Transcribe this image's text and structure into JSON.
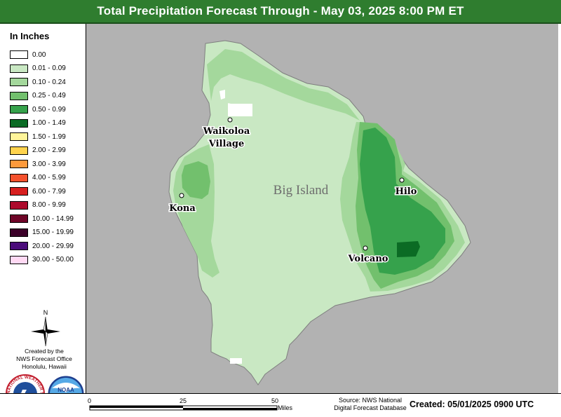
{
  "title": "Total Precipitation Forecast Through - May 03, 2025 8:00 PM ET",
  "legend": {
    "title": "In Inches",
    "items": [
      {
        "label": "0.00",
        "color": "#ffffff"
      },
      {
        "label": "0.01 - 0.09",
        "color": "#c9e8c3"
      },
      {
        "label": "0.10 - 0.24",
        "color": "#a4d89c"
      },
      {
        "label": "0.25 - 0.49",
        "color": "#72c06d"
      },
      {
        "label": "0.50 - 0.99",
        "color": "#36a24c"
      },
      {
        "label": "1.00 - 1.49",
        "color": "#0b6b24"
      },
      {
        "label": "1.50 - 1.99",
        "color": "#fff59a"
      },
      {
        "label": "2.00 - 2.99",
        "color": "#ffd34d"
      },
      {
        "label": "3.00 - 3.99",
        "color": "#fd9a3c"
      },
      {
        "label": "4.00 - 5.99",
        "color": "#f4512d"
      },
      {
        "label": "6.00 - 7.99",
        "color": "#d71f1f"
      },
      {
        "label": "8.00 - 9.99",
        "color": "#ad0a2c"
      },
      {
        "label": "10.00 - 14.99",
        "color": "#6e0527"
      },
      {
        "label": "15.00 - 19.99",
        "color": "#3b0028"
      },
      {
        "label": "20.00 - 29.99",
        "color": "#4a0b7a"
      },
      {
        "label": "30.00 - 50.00",
        "color": "#ffd9f3"
      }
    ]
  },
  "north_label": "N",
  "created_by": [
    "Created by the",
    "NWS Forecast Office",
    "Honolulu, Hawaii"
  ],
  "logos": {
    "nws_text": "NATIONAL WEATHER SERVICE",
    "noaa_text": "NOAA"
  },
  "map": {
    "island_name": "Big Island",
    "background_color": "#b2b2b2",
    "towns": [
      {
        "name_lines": [
          "Waikoloa",
          "Village"
        ]
      },
      {
        "name_lines": [
          "Kona"
        ]
      },
      {
        "name_lines": [
          "Hilo"
        ]
      },
      {
        "name_lines": [
          "Volcano"
        ]
      }
    ]
  },
  "scale": {
    "ticks": [
      "0",
      "25",
      "50"
    ],
    "unit": "Miles"
  },
  "source": [
    "Source: NWS National",
    "Digital Forecast Database"
  ],
  "created_stamp": "Created: 05/01/2025 0900 UTC"
}
